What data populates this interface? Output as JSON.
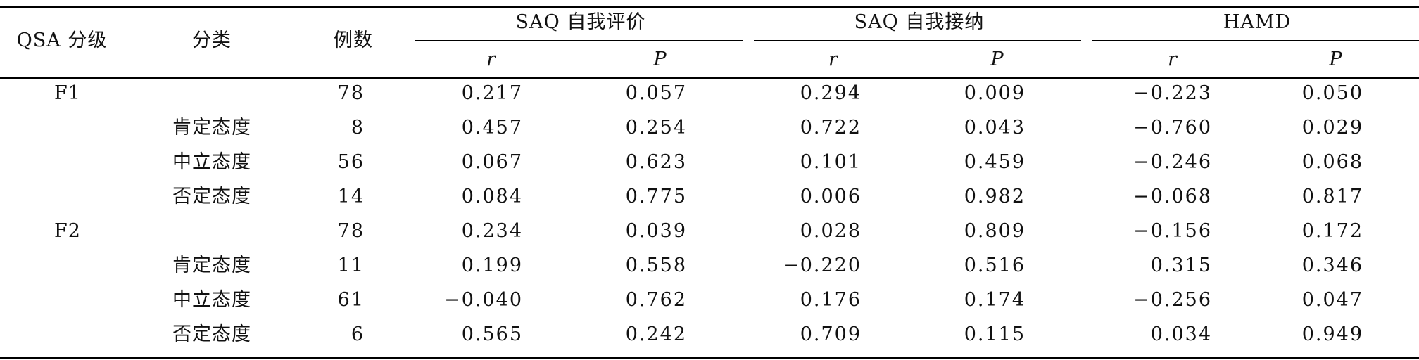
{
  "header": {
    "col_grade": "QSA 分级",
    "col_class": "分类",
    "col_count": "例数",
    "groups": [
      "SAQ 自我评价",
      "SAQ 自我接纳",
      "HAMD"
    ],
    "sub": [
      "r",
      "P",
      "r",
      "P",
      "r",
      "P"
    ]
  },
  "rows": [
    {
      "grade": "F1",
      "cls": "",
      "n": "78",
      "v": [
        "0.217",
        "0.057",
        "0.294",
        "0.009",
        "−0.223",
        "0.050"
      ]
    },
    {
      "grade": "",
      "cls": "肯定态度",
      "n": "8",
      "v": [
        "0.457",
        "0.254",
        "0.722",
        "0.043",
        "−0.760",
        "0.029"
      ]
    },
    {
      "grade": "",
      "cls": "中立态度",
      "n": "56",
      "v": [
        "0.067",
        "0.623",
        "0.101",
        "0.459",
        "−0.246",
        "0.068"
      ]
    },
    {
      "grade": "",
      "cls": "否定态度",
      "n": "14",
      "v": [
        "0.084",
        "0.775",
        "0.006",
        "0.982",
        "−0.068",
        "0.817"
      ]
    },
    {
      "grade": "F2",
      "cls": "",
      "n": "78",
      "v": [
        "0.234",
        "0.039",
        "0.028",
        "0.809",
        "−0.156",
        "0.172"
      ]
    },
    {
      "grade": "",
      "cls": "肯定态度",
      "n": "11",
      "v": [
        "0.199",
        "0.558",
        "−0.220",
        "0.516",
        "0.315",
        "0.346"
      ]
    },
    {
      "grade": "",
      "cls": "中立态度",
      "n": "61",
      "v": [
        "−0.040",
        "0.762",
        "0.176",
        "0.174",
        "−0.256",
        "0.047"
      ]
    },
    {
      "grade": "",
      "cls": "否定态度",
      "n": "6",
      "v": [
        "0.565",
        "0.242",
        "0.709",
        "0.115",
        "0.034",
        "0.949"
      ]
    }
  ]
}
